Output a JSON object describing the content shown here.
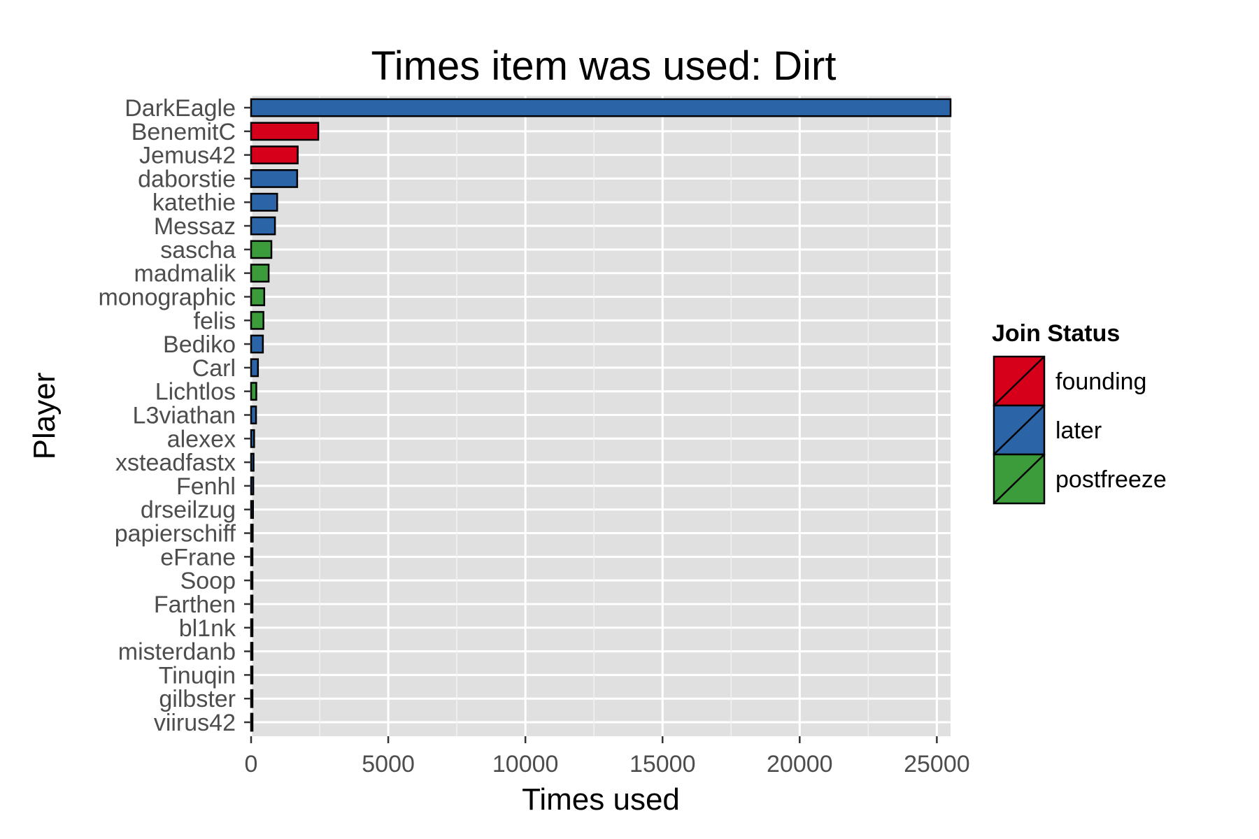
{
  "chart_data": {
    "type": "bar",
    "orientation": "horizontal",
    "title": "Times item was used: Dirt",
    "xlabel": "Times used",
    "ylabel": "Player",
    "xlim": [
      0,
      25500
    ],
    "x_ticks": [
      0,
      5000,
      10000,
      15000,
      20000,
      25000
    ],
    "grid": true,
    "legend_position": "right",
    "legend_title": "Join Status",
    "groups": [
      {
        "name": "founding",
        "color": "#d7001a"
      },
      {
        "name": "later",
        "color": "#2b65a8"
      },
      {
        "name": "postfreeze",
        "color": "#3c9b3a"
      }
    ],
    "bars": [
      {
        "player": "DarkEagle",
        "value": 25500,
        "group": "later"
      },
      {
        "player": "BenemitC",
        "value": 2450,
        "group": "founding"
      },
      {
        "player": "Jemus42",
        "value": 1700,
        "group": "founding"
      },
      {
        "player": "daborstie",
        "value": 1680,
        "group": "later"
      },
      {
        "player": "katethie",
        "value": 950,
        "group": "later"
      },
      {
        "player": "Messaz",
        "value": 870,
        "group": "later"
      },
      {
        "player": "sascha",
        "value": 740,
        "group": "postfreeze"
      },
      {
        "player": "madmalik",
        "value": 640,
        "group": "postfreeze"
      },
      {
        "player": "monographic",
        "value": 480,
        "group": "postfreeze"
      },
      {
        "player": "felis",
        "value": 450,
        "group": "postfreeze"
      },
      {
        "player": "Bediko",
        "value": 430,
        "group": "later"
      },
      {
        "player": "Carl",
        "value": 250,
        "group": "later"
      },
      {
        "player": "Lichtlos",
        "value": 190,
        "group": "postfreeze"
      },
      {
        "player": "L3viathan",
        "value": 180,
        "group": "later"
      },
      {
        "player": "alexex",
        "value": 110,
        "group": "later"
      },
      {
        "player": "xsteadfastx",
        "value": 90,
        "group": "later"
      },
      {
        "player": "Fenhl",
        "value": 80,
        "group": "later"
      },
      {
        "player": "drseilzug",
        "value": 70,
        "group": "later"
      },
      {
        "player": "papierschiff",
        "value": 60,
        "group": "later"
      },
      {
        "player": "eFrane",
        "value": 45,
        "group": "later"
      },
      {
        "player": "Soop",
        "value": 40,
        "group": "later"
      },
      {
        "player": "Farthen",
        "value": 30,
        "group": "later"
      },
      {
        "player": "bl1nk",
        "value": 25,
        "group": "later"
      },
      {
        "player": "misterdanb",
        "value": 20,
        "group": "later"
      },
      {
        "player": "Tinuqin",
        "value": 15,
        "group": "later"
      },
      {
        "player": "gilbster",
        "value": 10,
        "group": "later"
      },
      {
        "player": "viirus42",
        "value": 5,
        "group": "later"
      }
    ]
  }
}
